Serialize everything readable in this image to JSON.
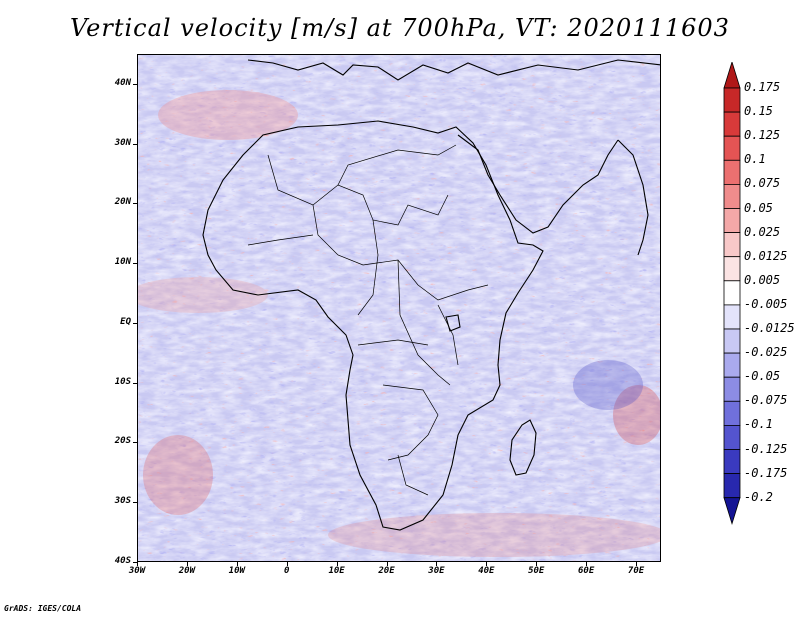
{
  "title": "Vertical velocity [m/s] at 700hPa, VT: 2020111603",
  "credit": "GrADS: IGES/COLA",
  "lat_labels": [
    "40N",
    "30N",
    "20N",
    "10N",
    "EQ",
    "10S",
    "20S",
    "30S",
    "40S"
  ],
  "lat_values": [
    40,
    30,
    20,
    10,
    0,
    -10,
    -20,
    -30,
    -40
  ],
  "lon_labels": [
    "30W",
    "20W",
    "10W",
    "0",
    "10E",
    "20E",
    "30E",
    "40E",
    "50E",
    "60E",
    "70E"
  ],
  "lon_values": [
    -30,
    -20,
    -10,
    0,
    10,
    20,
    30,
    40,
    50,
    60,
    70
  ],
  "extent": {
    "lon_min": -30,
    "lon_max": 75,
    "lat_min": -40,
    "lat_max": 45
  },
  "colorbar": {
    "labels": [
      "0.175",
      "0.15",
      "0.125",
      "0.1",
      "0.075",
      "0.05",
      "0.025",
      "0.0125",
      "0.005",
      "-0.005",
      "-0.0125",
      "-0.025",
      "-0.05",
      "-0.075",
      "-0.1",
      "-0.125",
      "-0.175",
      "-0.2"
    ],
    "colors": [
      "#b01818",
      "#c72828",
      "#d83a3a",
      "#e45454",
      "#ec7070",
      "#f08c8c",
      "#f4a8a8",
      "#f8c8c8",
      "#fbe3e3",
      "#ffffff",
      "#e3e3fb",
      "#c8c8f4",
      "#aaaaee",
      "#8c8ce4",
      "#7070dc",
      "#5454cf",
      "#3a3abf",
      "#2828ae",
      "#141494"
    ]
  }
}
